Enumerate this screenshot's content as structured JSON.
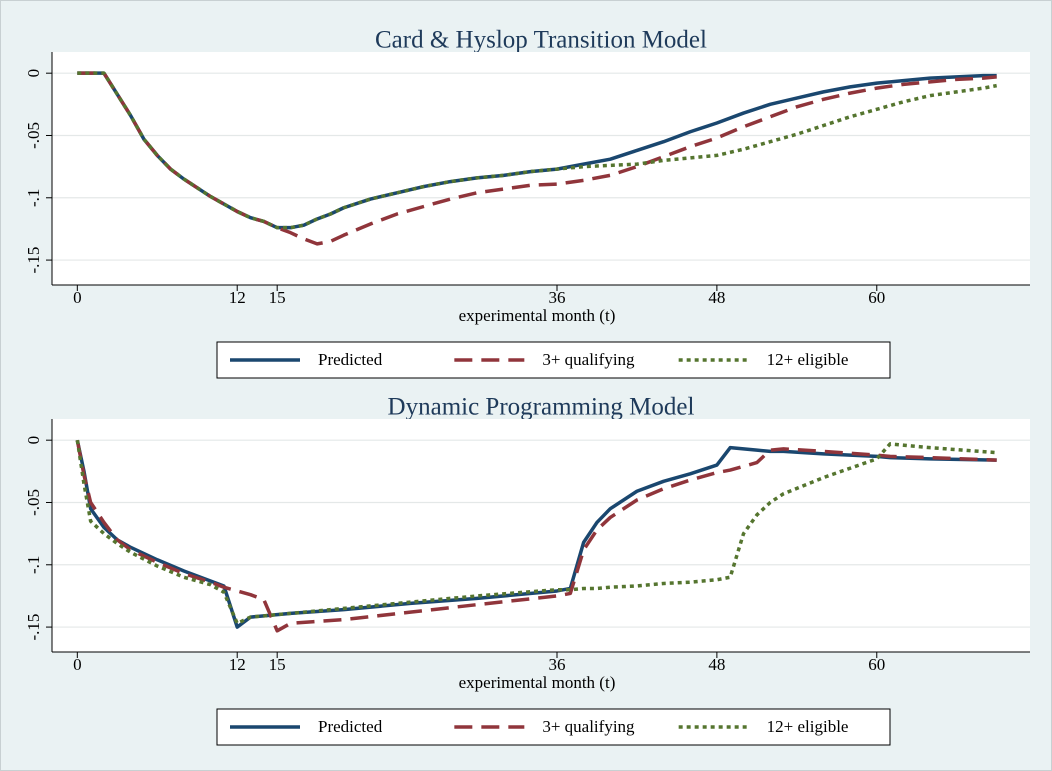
{
  "chart_data": [
    {
      "type": "line",
      "title": "Card & Hyslop Transition Model",
      "xlabel": "experimental month (t)",
      "x": [
        0,
        1,
        2,
        3,
        4,
        5,
        6,
        7,
        8,
        9,
        10,
        11,
        12,
        13,
        14,
        15,
        16,
        17,
        18,
        19,
        20,
        22,
        24,
        26,
        28,
        30,
        32,
        34,
        36,
        38,
        40,
        42,
        44,
        46,
        48,
        50,
        52,
        54,
        56,
        58,
        60,
        62,
        64,
        66,
        68,
        69
      ],
      "series": [
        {
          "name": "Predicted",
          "color": "#1a476f",
          "dash": "solid",
          "values": [
            0,
            0,
            0,
            -0.017,
            -0.034,
            -0.053,
            -0.066,
            -0.077,
            -0.085,
            -0.092,
            -0.099,
            -0.105,
            -0.111,
            -0.116,
            -0.119,
            -0.124,
            -0.124,
            -0.122,
            -0.117,
            -0.113,
            -0.108,
            -0.101,
            -0.096,
            -0.091,
            -0.087,
            -0.084,
            -0.082,
            -0.079,
            -0.077,
            -0.073,
            -0.069,
            -0.062,
            -0.055,
            -0.047,
            -0.04,
            -0.032,
            -0.025,
            -0.02,
            -0.015,
            -0.011,
            -0.008,
            -0.006,
            -0.004,
            -0.003,
            -0.002,
            -0.002
          ]
        },
        {
          "name": "3+ qualifying",
          "color": "#90353b",
          "dash": "dashed",
          "values": [
            0,
            0,
            0,
            -0.017,
            -0.034,
            -0.053,
            -0.066,
            -0.077,
            -0.085,
            -0.092,
            -0.099,
            -0.105,
            -0.111,
            -0.116,
            -0.119,
            -0.124,
            -0.128,
            -0.133,
            -0.137,
            -0.135,
            -0.13,
            -0.121,
            -0.113,
            -0.107,
            -0.101,
            -0.096,
            -0.093,
            -0.09,
            -0.089,
            -0.086,
            -0.082,
            -0.075,
            -0.067,
            -0.059,
            -0.052,
            -0.043,
            -0.035,
            -0.027,
            -0.021,
            -0.016,
            -0.012,
            -0.009,
            -0.007,
            -0.005,
            -0.004,
            -0.003
          ]
        },
        {
          "name": "12+ eligible",
          "color": "#55752f",
          "dash": "dotted",
          "values": [
            0,
            0,
            0,
            -0.017,
            -0.034,
            -0.053,
            -0.066,
            -0.077,
            -0.085,
            -0.092,
            -0.099,
            -0.105,
            -0.111,
            -0.116,
            -0.119,
            -0.124,
            -0.124,
            -0.122,
            -0.117,
            -0.113,
            -0.108,
            -0.101,
            -0.096,
            -0.091,
            -0.087,
            -0.084,
            -0.082,
            -0.079,
            -0.077,
            -0.075,
            -0.074,
            -0.073,
            -0.07,
            -0.068,
            -0.066,
            -0.061,
            -0.055,
            -0.049,
            -0.042,
            -0.035,
            -0.029,
            -0.023,
            -0.018,
            -0.015,
            -0.012,
            -0.01
          ]
        }
      ],
      "xlim": [
        -1.9,
        71.5
      ],
      "ylim": [
        -0.17,
        0.017
      ],
      "xticks": [
        0,
        12,
        15,
        36,
        48,
        60
      ],
      "yticks": [
        0,
        {
          "value": -0.05,
          "label": "-.05"
        },
        {
          "value": -0.1,
          "label": "-.1"
        },
        {
          "value": -0.15,
          "label": "-.15"
        }
      ],
      "grid": true,
      "legend": "bottom"
    },
    {
      "type": "line",
      "title": "Dynamic Programming Model",
      "xlabel": "experimental month (t)",
      "x": [
        0,
        0.5,
        1,
        2,
        3,
        4,
        6,
        8,
        10,
        11,
        12,
        13,
        14,
        15,
        16,
        20,
        25,
        30,
        36,
        37,
        38,
        39,
        40,
        42,
        44,
        46,
        48,
        49,
        50,
        51,
        52,
        53,
        56,
        60,
        61,
        64,
        69
      ],
      "series": [
        {
          "name": "Predicted",
          "color": "#1a476f",
          "dash": "solid",
          "values": [
            0,
            -0.025,
            -0.055,
            -0.07,
            -0.08,
            -0.086,
            -0.096,
            -0.105,
            -0.113,
            -0.117,
            -0.15,
            -0.142,
            -0.141,
            -0.14,
            -0.139,
            -0.136,
            -0.131,
            -0.127,
            -0.121,
            -0.119,
            -0.082,
            -0.066,
            -0.055,
            -0.041,
            -0.033,
            -0.027,
            -0.02,
            -0.006,
            -0.007,
            -0.008,
            -0.009,
            -0.009,
            -0.011,
            -0.013,
            -0.014,
            -0.015,
            -0.016
          ]
        },
        {
          "name": "3+ qualifying",
          "color": "#90353b",
          "dash": "dashed",
          "values": [
            0,
            -0.028,
            -0.05,
            -0.066,
            -0.08,
            -0.088,
            -0.098,
            -0.107,
            -0.114,
            -0.118,
            -0.121,
            -0.124,
            -0.128,
            -0.153,
            -0.147,
            -0.144,
            -0.138,
            -0.132,
            -0.125,
            -0.123,
            -0.088,
            -0.072,
            -0.062,
            -0.048,
            -0.039,
            -0.032,
            -0.026,
            -0.024,
            -0.021,
            -0.018,
            -0.008,
            -0.007,
            -0.009,
            -0.012,
            -0.013,
            -0.014,
            -0.016
          ]
        },
        {
          "name": "12+ eligible",
          "color": "#55752f",
          "dash": "dotted",
          "values": [
            0,
            -0.035,
            -0.065,
            -0.075,
            -0.083,
            -0.09,
            -0.101,
            -0.11,
            -0.116,
            -0.122,
            -0.147,
            -0.142,
            -0.141,
            -0.14,
            -0.139,
            -0.135,
            -0.13,
            -0.125,
            -0.12,
            -0.12,
            -0.119,
            -0.119,
            -0.118,
            -0.117,
            -0.115,
            -0.114,
            -0.112,
            -0.11,
            -0.075,
            -0.06,
            -0.05,
            -0.043,
            -0.03,
            -0.015,
            -0.003,
            -0.006,
            -0.01
          ]
        }
      ],
      "xlim": [
        -1.9,
        71.5
      ],
      "ylim": [
        -0.17,
        0.017
      ],
      "xticks": [
        0,
        12,
        15,
        36,
        48,
        60
      ],
      "yticks": [
        0,
        {
          "value": -0.05,
          "label": "-.05"
        },
        {
          "value": -0.1,
          "label": "-.1"
        },
        {
          "value": -0.15,
          "label": "-.15"
        }
      ],
      "grid": true,
      "legend": "bottom"
    }
  ]
}
